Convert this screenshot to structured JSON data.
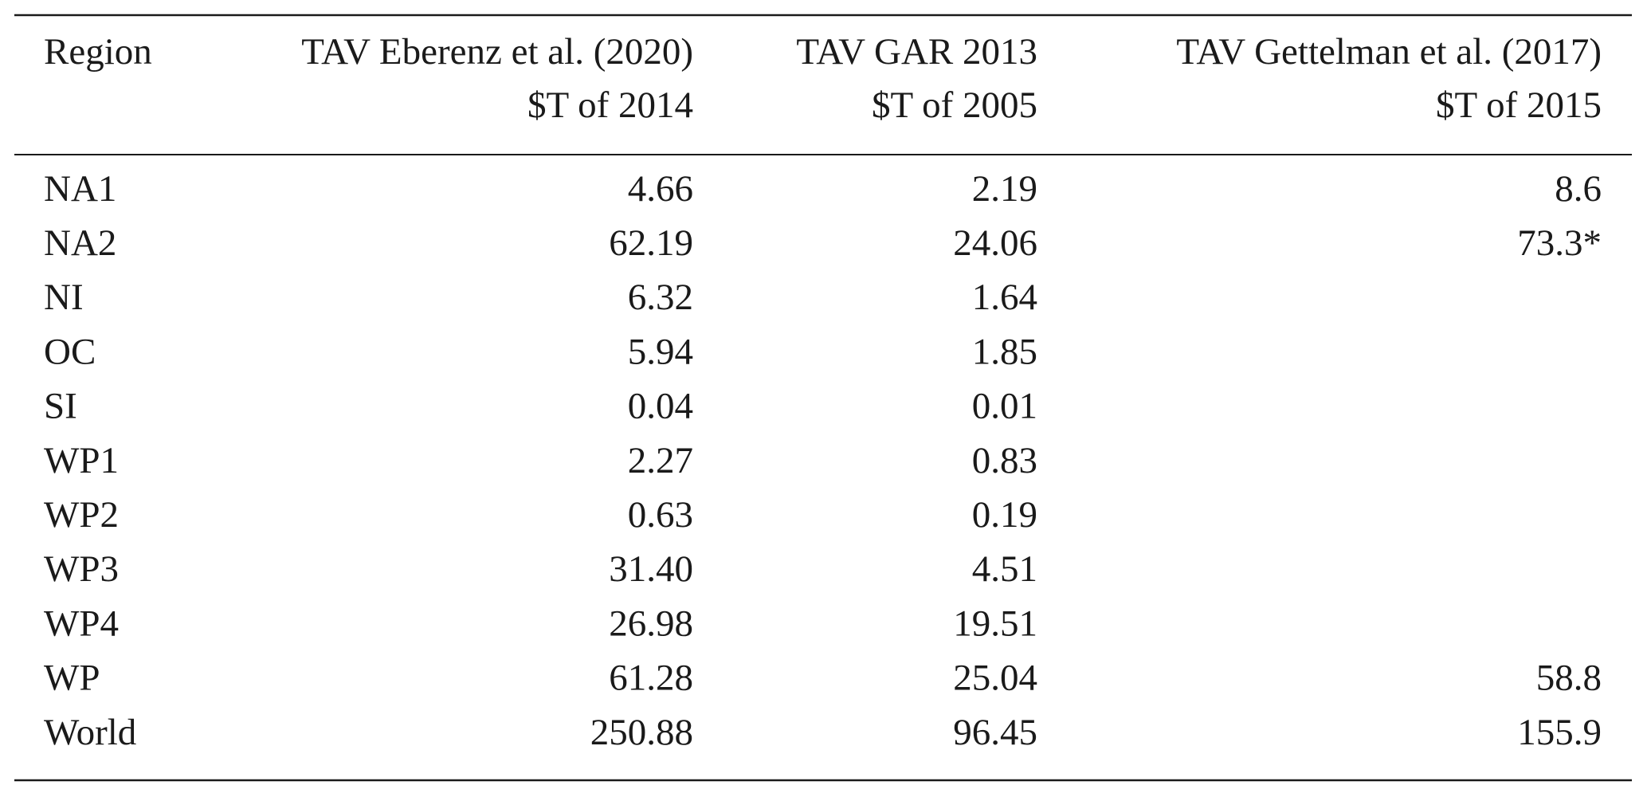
{
  "table": {
    "columns": [
      [
        "Region"
      ],
      [
        "TAV Eberenz et al. (2020)",
        "$T of 2014"
      ],
      [
        "TAV GAR 2013",
        "$T of 2005"
      ],
      [
        "TAV Gettelman et al. (2017)",
        "$T of 2015"
      ]
    ],
    "rows": [
      [
        "NA1",
        "4.66",
        "2.19",
        "8.6"
      ],
      [
        "NA2",
        "62.19",
        "24.06",
        "73.3*"
      ],
      [
        "NI",
        "6.32",
        "1.64",
        null
      ],
      [
        "OC",
        "5.94",
        "1.85",
        null
      ],
      [
        "SI",
        "0.04",
        "0.01",
        null
      ],
      [
        "WP1",
        "2.27",
        "0.83",
        null
      ],
      [
        "WP2",
        "0.63",
        "0.19",
        null
      ],
      [
        "WP3",
        "31.40",
        "4.51",
        null
      ],
      [
        "WP4",
        "26.98",
        "19.51",
        null
      ],
      [
        "WP",
        "61.28",
        "25.04",
        "58.8"
      ],
      [
        "World",
        "250.88",
        "96.45",
        "155.9"
      ]
    ]
  }
}
